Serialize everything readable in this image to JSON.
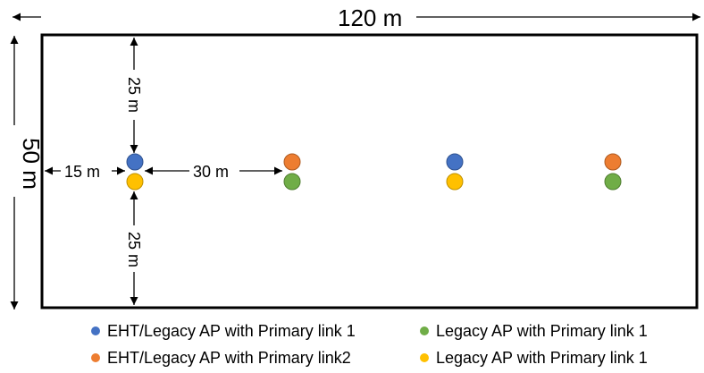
{
  "dimensions": {
    "width_label": "120 m",
    "height_label": "50 m",
    "left_offset_label": "15 m",
    "spacing_label": "30 m",
    "top_offset_label": "25 m",
    "bottom_offset_label": "25 m"
  },
  "legend": [
    {
      "label": "EHT/Legacy AP with Primary link 1",
      "color": "#4472C4"
    },
    {
      "label": "Legacy AP with Primary link 1",
      "color": "#70AD47"
    },
    {
      "label": "EHT/Legacy AP with Primary link2",
      "color": "#ED7D31"
    },
    {
      "label": "Legacy AP with Primary link 1",
      "color": "#FFC000"
    }
  ],
  "colors": {
    "blue": "#4472C4",
    "orange": "#ED7D31",
    "green": "#70AD47",
    "yellow": "#FFC000"
  }
}
